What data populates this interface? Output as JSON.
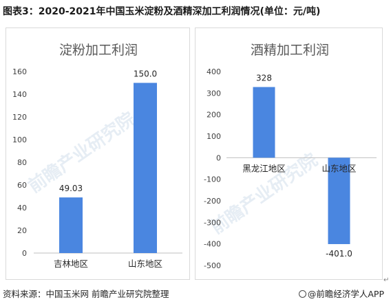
{
  "figure_title": "图表3：2020-2021年中国玉米淀粉及酒精深加工利润情况(单位：元/吨)",
  "source_text": "资料来源：中国玉米网 前瞻产业研究院整理",
  "brand_text": "@前瞻经济学人APP",
  "return_mark": "↵",
  "watermark": "前瞻产业研究院",
  "colors": {
    "bar": "#4a86e0",
    "axis": "#bfbfbf"
  },
  "chart_data": [
    {
      "type": "bar",
      "title": "淀粉加工利润",
      "categories": [
        "吉林地区",
        "山东地区"
      ],
      "values": [
        49.03,
        150.0
      ],
      "value_labels": [
        "49.03",
        "150.0"
      ],
      "ylim": [
        0,
        160
      ],
      "yticks": [
        0,
        20,
        40,
        60,
        80,
        100,
        120,
        140,
        160
      ],
      "xlabel": "",
      "ylabel": "",
      "grid": false
    },
    {
      "type": "bar",
      "title": "酒精加工利润",
      "categories": [
        "黑龙江地区",
        "山东地区"
      ],
      "values": [
        328,
        -401.0
      ],
      "value_labels": [
        "328",
        "-401.0"
      ],
      "ylim": [
        -500,
        400
      ],
      "yticks": [
        -500,
        -400,
        -300,
        -200,
        -100,
        0,
        100,
        200,
        300,
        400
      ],
      "xlabel": "",
      "ylabel": "",
      "grid": false
    }
  ]
}
